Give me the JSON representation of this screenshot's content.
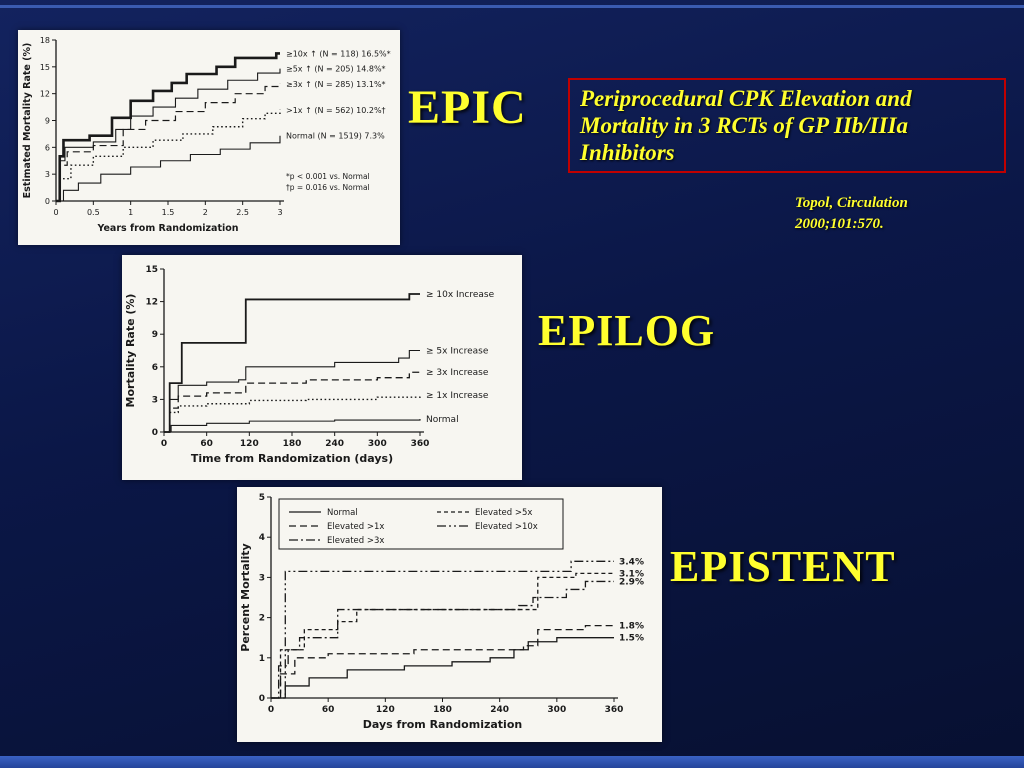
{
  "slide": {
    "headline": "Periprocedural CPK Elevation and Mortality in 3 RCTs of GP IIb/IIIa Inhibitors",
    "citation": "Topol, Circulation\n2000;101:570.",
    "labels": {
      "epic": "EPIC",
      "epilog": "EPILOG",
      "epistent": "EPISTENT"
    },
    "colors": {
      "background": "#0b1747",
      "accent_yellow": "#ffff2e",
      "headline_border": "#c00000",
      "bottom_bar": "#2e54ad",
      "panel": "#f7f6f1",
      "ink": "#1a1a1a"
    }
  },
  "chart_data": [
    {
      "id": "epic",
      "type": "line",
      "step": true,
      "title": "EPIC",
      "xlabel": "Years from Randomization",
      "ylabel": "Estimated Mortality Rate (%)",
      "xlim": [
        0,
        3
      ],
      "xticks": [
        0,
        0.5,
        1,
        1.5,
        2,
        2.5,
        3
      ],
      "ylim": [
        0,
        18
      ],
      "yticks": [
        0,
        3,
        6,
        9,
        12,
        15,
        18
      ],
      "label_lines": true,
      "grid": false,
      "series": [
        {
          "name": "≥10x ↑ (N = 118) 16.5%*",
          "style": "solid",
          "width": 2.6,
          "x": [
            0,
            0.05,
            0.1,
            0.45,
            0.75,
            1.0,
            1.3,
            1.55,
            1.75,
            2.15,
            2.4,
            2.95,
            3
          ],
          "y": [
            0,
            5.0,
            6.8,
            7.3,
            9.3,
            11.2,
            12.3,
            13.2,
            14.2,
            15.0,
            16.0,
            16.5,
            16.5
          ]
        },
        {
          "name": "≥5x ↑ (N = 205) 14.8%*",
          "style": "solid",
          "width": 1.1,
          "x": [
            0,
            0.05,
            0.12,
            0.5,
            0.8,
            1.0,
            1.3,
            1.6,
            1.9,
            2.3,
            2.7,
            3
          ],
          "y": [
            0,
            4.5,
            6.0,
            6.6,
            8.0,
            9.5,
            10.5,
            11.5,
            12.5,
            13.5,
            14.3,
            14.8
          ]
        },
        {
          "name": "≥3x ↑ (N = 285) 13.1%*",
          "style": "dashed",
          "width": 1.2,
          "x": [
            0,
            0.05,
            0.15,
            0.5,
            0.9,
            1.2,
            1.6,
            2.0,
            2.4,
            2.8,
            3
          ],
          "y": [
            0,
            4.0,
            5.5,
            6.2,
            8.0,
            9.0,
            10.0,
            11.0,
            12.0,
            12.8,
            13.1
          ]
        },
        {
          "name": ">1x ↑ (N = 562) 10.2%†",
          "style": "dotted",
          "width": 1.4,
          "x": [
            0,
            0.05,
            0.2,
            0.5,
            0.9,
            1.3,
            1.7,
            2.1,
            2.5,
            2.8,
            3
          ],
          "y": [
            0,
            2.5,
            4.0,
            5.0,
            6.0,
            6.8,
            7.5,
            8.3,
            9.2,
            9.8,
            10.2
          ]
        },
        {
          "name": "Normal (N = 1519) 7.3%",
          "style": "solid",
          "width": 1.1,
          "x": [
            0,
            0.1,
            0.3,
            0.6,
            1.0,
            1.4,
            1.8,
            2.2,
            2.6,
            3
          ],
          "y": [
            0,
            1.2,
            2.0,
            3.0,
            3.8,
            4.5,
            5.2,
            5.8,
            6.5,
            7.3
          ]
        }
      ],
      "annotations": [
        "*p < 0.001 vs. Normal",
        "†p = 0.016 vs. Normal"
      ]
    },
    {
      "id": "epilog",
      "type": "line",
      "step": true,
      "title": "EPILOG",
      "xlabel": "Time from Randomization (days)",
      "ylabel": "Mortality Rate (%)",
      "xlim": [
        0,
        360
      ],
      "xticks": [
        0,
        60,
        120,
        180,
        240,
        300,
        360
      ],
      "ylim": [
        0,
        15
      ],
      "yticks": [
        0,
        3,
        6,
        9,
        12,
        15
      ],
      "label_lines": true,
      "grid": false,
      "series": [
        {
          "name": "≥ 10x Increase",
          "style": "solid",
          "width": 1.8,
          "x": [
            0,
            8,
            25,
            105,
            115,
            335,
            345,
            360
          ],
          "y": [
            0,
            4.5,
            8.2,
            8.2,
            12.2,
            12.2,
            12.7,
            12.7
          ]
        },
        {
          "name": "≥ 5x Increase",
          "style": "solid",
          "width": 1.1,
          "x": [
            0,
            8,
            20,
            60,
            105,
            115,
            240,
            330,
            345,
            360
          ],
          "y": [
            0,
            3.0,
            4.3,
            4.6,
            4.8,
            6.0,
            6.4,
            6.8,
            7.5,
            7.5
          ]
        },
        {
          "name": "≥ 3x Increase",
          "style": "dashed",
          "width": 1.3,
          "x": [
            0,
            8,
            20,
            60,
            115,
            200,
            300,
            345,
            360
          ],
          "y": [
            0,
            2.2,
            3.3,
            3.6,
            4.5,
            4.8,
            5.0,
            5.5,
            5.5
          ]
        },
        {
          "name": "≥ 1x Increase",
          "style": "dotted",
          "width": 1.4,
          "x": [
            0,
            8,
            20,
            60,
            120,
            200,
            300,
            360
          ],
          "y": [
            0,
            1.8,
            2.4,
            2.6,
            2.9,
            3.0,
            3.2,
            3.4
          ]
        },
        {
          "name": "Normal",
          "style": "solid",
          "width": 1.1,
          "x": [
            0,
            10,
            60,
            120,
            240,
            360
          ],
          "y": [
            0,
            0.6,
            0.8,
            1.0,
            1.1,
            1.2
          ]
        }
      ],
      "annotations": []
    },
    {
      "id": "epistent",
      "type": "line",
      "step": true,
      "title": "EPISTENT",
      "xlabel": "Days from Randomization",
      "ylabel": "Percent Mortality",
      "xlim": [
        0,
        360
      ],
      "xticks": [
        0,
        60,
        120,
        180,
        240,
        300,
        360
      ],
      "ylim": [
        0,
        5
      ],
      "yticks": [
        0,
        1,
        2,
        3,
        4,
        5
      ],
      "label_lines": false,
      "grid": false,
      "legend_columns": [
        [
          "Normal",
          "Elevated >1x",
          "Elevated >3x"
        ],
        [
          "Elevated >5x",
          "Elevated >10x"
        ]
      ],
      "series": [
        {
          "name": "Elevated >10x",
          "style": "dashdotdot",
          "width": 1.3,
          "end_label": "3.4%",
          "x": [
            0,
            15,
            300,
            315,
            360
          ],
          "y": [
            0,
            3.15,
            3.15,
            3.4,
            3.4
          ]
        },
        {
          "name": "Elevated >5x",
          "style": "dashed2",
          "width": 1.3,
          "end_label": "3.1%",
          "x": [
            0,
            10,
            35,
            70,
            90,
            265,
            280,
            320,
            360
          ],
          "y": [
            0,
            1.2,
            1.7,
            1.9,
            2.2,
            2.2,
            3.0,
            3.1,
            3.1
          ]
        },
        {
          "name": "Elevated >3x",
          "style": "dashdot",
          "width": 1.3,
          "end_label": "2.9%",
          "x": [
            0,
            8,
            18,
            30,
            70,
            260,
            275,
            310,
            330,
            360
          ],
          "y": [
            0,
            0.8,
            1.2,
            1.5,
            2.2,
            2.3,
            2.5,
            2.7,
            2.9,
            2.9
          ]
        },
        {
          "name": "Elevated >1x",
          "style": "dashed",
          "width": 1.3,
          "end_label": "1.8%",
          "x": [
            0,
            10,
            25,
            60,
            150,
            265,
            280,
            330,
            360
          ],
          "y": [
            0,
            0.6,
            1.0,
            1.1,
            1.2,
            1.3,
            1.7,
            1.8,
            1.8
          ]
        },
        {
          "name": "Normal",
          "style": "solid",
          "width": 1.3,
          "end_label": "1.5%",
          "x": [
            0,
            15,
            40,
            80,
            140,
            190,
            230,
            255,
            270,
            300,
            360
          ],
          "y": [
            0,
            0.3,
            0.5,
            0.7,
            0.8,
            0.9,
            1.0,
            1.2,
            1.4,
            1.5,
            1.5
          ]
        }
      ],
      "annotations": []
    }
  ]
}
